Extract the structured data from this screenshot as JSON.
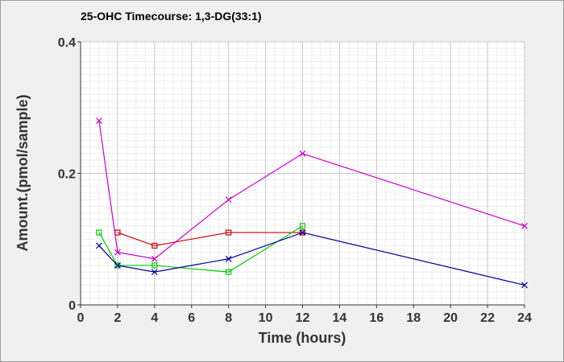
{
  "chart_data": {
    "type": "line",
    "title": "25-OHC Timecourse: 1,3-DG(33:1)",
    "xlabel": "Time (hours)",
    "ylabel": "Amount.(pmol/sample)",
    "xlim": [
      0,
      24
    ],
    "ylim": [
      0,
      0.4
    ],
    "x_ticks": [
      0,
      2,
      4,
      6,
      8,
      10,
      12,
      14,
      16,
      18,
      20,
      22,
      24
    ],
    "x_tick_labels": [
      "0",
      "2",
      "4",
      "6",
      "8",
      "10",
      "12",
      "14",
      "16",
      "18",
      "20",
      "22",
      "24"
    ],
    "y_ticks": [
      0,
      0.2,
      0.4
    ],
    "y_tick_labels": [
      "0",
      "0.2",
      "0.4"
    ],
    "grid": true,
    "series": [
      {
        "color": "#cc0000",
        "marker": "square",
        "x": [
          2,
          4,
          8,
          12
        ],
        "y": [
          0.11,
          0.09,
          0.11,
          0.11
        ]
      },
      {
        "color": "#00cc00",
        "marker": "square",
        "x": [
          1,
          2,
          4,
          8,
          12
        ],
        "y": [
          0.11,
          0.06,
          0.06,
          0.05,
          0.12
        ]
      },
      {
        "color": "#000099",
        "marker": "x",
        "x": [
          1,
          2,
          4,
          8,
          12,
          24
        ],
        "y": [
          0.09,
          0.06,
          0.05,
          0.07,
          0.11,
          0.03
        ]
      },
      {
        "color": "#cc00cc",
        "marker": "x",
        "x": [
          1,
          2,
          4,
          8,
          12,
          24
        ],
        "y": [
          0.28,
          0.08,
          0.07,
          0.16,
          0.23,
          0.12
        ]
      }
    ]
  }
}
